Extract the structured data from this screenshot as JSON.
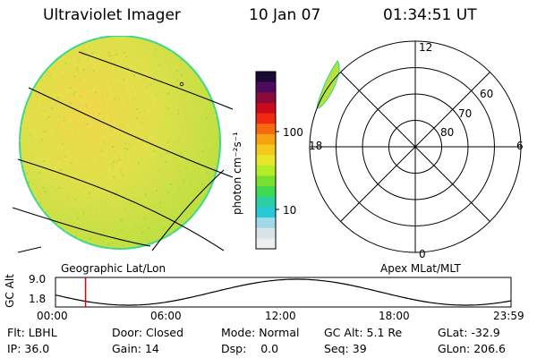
{
  "header": {
    "instrument": "Ultraviolet Imager",
    "date": "10 Jan 07",
    "time": "01:34:51 UT"
  },
  "colorbar": {
    "unit_label": "photon cm⁻²s⁻¹",
    "ticks": [
      "100",
      "10"
    ],
    "colors": [
      "#1a0a33",
      "#4b0a5a",
      "#8a0a3a",
      "#c80a1a",
      "#f02a10",
      "#f56a10",
      "#f7a010",
      "#f5c81e",
      "#e8e628",
      "#b4ec28",
      "#78e030",
      "#40d850",
      "#2ad0a0",
      "#28c8d8",
      "#a0d8e8",
      "#d8e4ea",
      "#eeeeee"
    ]
  },
  "geo_panel": {
    "caption": "Geographic Lat/Lon",
    "fill_color": "#d4e04a",
    "edge_color": "#3cd88c"
  },
  "polar_panel": {
    "caption": "Apex MLat/MLT",
    "mlt_labels": {
      "top": "12",
      "bottom": "0",
      "left": "18",
      "right": "6"
    },
    "mlat_labels": [
      "60",
      "70",
      "80"
    ]
  },
  "timeline": {
    "ylabel": "GC Alt",
    "yticks": [
      "9.0",
      "1.8"
    ],
    "xticks": [
      "00:00",
      "06:00",
      "12:00",
      "18:00",
      "23:59"
    ],
    "cursor_fraction": 0.066,
    "cursor_color": "#e00000"
  },
  "info": [
    [
      {
        "k": "Flt:",
        "v": "LBHL"
      },
      {
        "k": "Door:",
        "v": "Closed"
      },
      {
        "k": "Mode:",
        "v": "Normal"
      },
      {
        "k": "GC Alt:",
        "v": "5.1 Re"
      },
      {
        "k": "GLat:",
        "v": "-32.9"
      }
    ],
    [
      {
        "k": "IP:",
        "v": "36.0"
      },
      {
        "k": "Gain:",
        "v": "14"
      },
      {
        "k": "Dsp:",
        "v": "0.0"
      },
      {
        "k": "Seq:",
        "v": "39"
      },
      {
        "k": "GLon:",
        "v": "206.6"
      }
    ]
  ]
}
